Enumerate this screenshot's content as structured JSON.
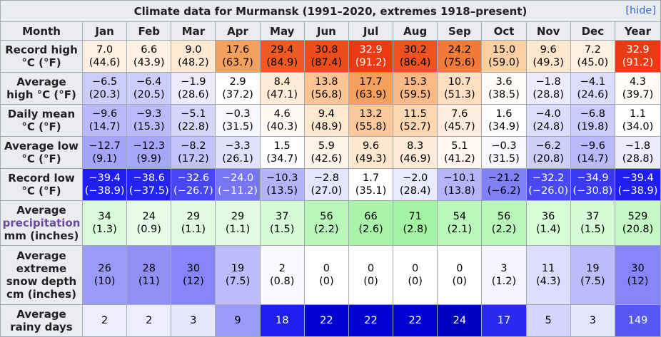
{
  "title": "Climate data for Murmansk (1991–2020, extremes 1918–present)",
  "hide_label": "[hide]",
  "header": [
    "Month",
    "Jan",
    "Feb",
    "Mar",
    "Apr",
    "May",
    "Jun",
    "Jul",
    "Aug",
    "Sep",
    "Oct",
    "Nov",
    "Dec",
    "Year"
  ],
  "rows": [
    {
      "label": "Record high °C (°F)",
      "label_lines": [
        "Record high",
        "°C (°F)"
      ],
      "cells": [
        {
          "t": "7.0",
          "s": "(44.6)",
          "bg": "#fff0e1",
          "fg": "#000000"
        },
        {
          "t": "6.6",
          "s": "(43.9)",
          "bg": "#fff1e3",
          "fg": "#000000"
        },
        {
          "t": "9.0",
          "s": "(48.2)",
          "bg": "#ffe9d3",
          "fg": "#000000"
        },
        {
          "t": "17.6",
          "s": "(63.7)",
          "bg": "#f5a05c",
          "fg": "#000000"
        },
        {
          "t": "29.4",
          "s": "(84.9)",
          "bg": "#f05a22",
          "fg": "#000000"
        },
        {
          "t": "30.8",
          "s": "(87.4)",
          "bg": "#ee4c1b",
          "fg": "#000000"
        },
        {
          "t": "32.9",
          "s": "(91.2)",
          "bg": "#ec3a12",
          "fg": "#ffffff"
        },
        {
          "t": "30.2",
          "s": "(86.4)",
          "bg": "#ef521e",
          "fg": "#000000"
        },
        {
          "t": "24.2",
          "s": "(75.6)",
          "bg": "#f27a38",
          "fg": "#000000"
        },
        {
          "t": "15.0",
          "s": "(59.0)",
          "bg": "#fdd0a4",
          "fg": "#000000"
        },
        {
          "t": "9.6",
          "s": "(49.3)",
          "bg": "#ffe7ce",
          "fg": "#000000"
        },
        {
          "t": "7.2",
          "s": "(45.0)",
          "bg": "#fff0e0",
          "fg": "#000000"
        },
        {
          "t": "32.9",
          "s": "(91.2)",
          "bg": "#ec3a12",
          "fg": "#ffffff"
        }
      ]
    },
    {
      "label": "Average high °C (°F)",
      "label_lines": [
        "Average",
        "high °C (°F)"
      ],
      "cells": [
        {
          "t": "−6.5",
          "s": "(20.3)",
          "bg": "#cdcdfc",
          "fg": "#000000"
        },
        {
          "t": "−6.4",
          "s": "(20.5)",
          "bg": "#cdcdfc",
          "fg": "#000000"
        },
        {
          "t": "−1.9",
          "s": "(28.6)",
          "bg": "#ececfe",
          "fg": "#000000"
        },
        {
          "t": "2.9",
          "s": "(37.2)",
          "bg": "#fffdfb",
          "fg": "#000000"
        },
        {
          "t": "8.4",
          "s": "(47.1)",
          "bg": "#ffebd6",
          "fg": "#000000"
        },
        {
          "t": "13.8",
          "s": "(56.8)",
          "bg": "#fdc596",
          "fg": "#000000"
        },
        {
          "t": "17.7",
          "s": "(63.9)",
          "bg": "#f5a05c",
          "fg": "#000000"
        },
        {
          "t": "15.3",
          "s": "(59.5)",
          "bg": "#fbba85",
          "fg": "#000000"
        },
        {
          "t": "10.7",
          "s": "(51.3)",
          "bg": "#ffdfbf",
          "fg": "#000000"
        },
        {
          "t": "3.6",
          "s": "(38.5)",
          "bg": "#fffbf8",
          "fg": "#000000"
        },
        {
          "t": "−1.8",
          "s": "(28.8)",
          "bg": "#ececfe",
          "fg": "#000000"
        },
        {
          "t": "−4.1",
          "s": "(24.6)",
          "bg": "#dcdcfd",
          "fg": "#000000"
        },
        {
          "t": "4.3",
          "s": "(39.7)",
          "bg": "#fffaf5",
          "fg": "#000000"
        }
      ]
    },
    {
      "label": "Daily mean °C (°F)",
      "label_lines": [
        "Daily mean",
        "°C (°F)"
      ],
      "cells": [
        {
          "t": "−9.6",
          "s": "(14.7)",
          "bg": "#b9b9fb",
          "fg": "#000000"
        },
        {
          "t": "−9.3",
          "s": "(15.3)",
          "bg": "#bbbbfb",
          "fg": "#000000"
        },
        {
          "t": "−5.1",
          "s": "(22.8)",
          "bg": "#d6d6fc",
          "fg": "#000000"
        },
        {
          "t": "−0.3",
          "s": "(31.5)",
          "bg": "#f7f7ff",
          "fg": "#000000"
        },
        {
          "t": "4.6",
          "s": "(40.3)",
          "bg": "#fff9f3",
          "fg": "#000000"
        },
        {
          "t": "9.4",
          "s": "(48.9)",
          "bg": "#ffe8d0",
          "fg": "#000000"
        },
        {
          "t": "13.2",
          "s": "(55.8)",
          "bg": "#fdc99b",
          "fg": "#000000"
        },
        {
          "t": "11.5",
          "s": "(52.7)",
          "bg": "#fed8b3",
          "fg": "#000000"
        },
        {
          "t": "7.6",
          "s": "(45.7)",
          "bg": "#ffeedd",
          "fg": "#000000"
        },
        {
          "t": "1.6",
          "s": "(34.9)",
          "bg": "#fffefd",
          "fg": "#000000"
        },
        {
          "t": "−4.0",
          "s": "(24.8)",
          "bg": "#dddcfd",
          "fg": "#000000"
        },
        {
          "t": "−6.8",
          "s": "(19.8)",
          "bg": "#cbcbfc",
          "fg": "#000000"
        },
        {
          "t": "1.1",
          "s": "(34.0)",
          "bg": "#ffffff",
          "fg": "#000000"
        }
      ]
    },
    {
      "label": "Average low °C (°F)",
      "label_lines": [
        "Average low",
        "°C (°F)"
      ],
      "cells": [
        {
          "t": "−12.7",
          "s": "(9.1)",
          "bg": "#a4a4fa",
          "fg": "#000000"
        },
        {
          "t": "−12.3",
          "s": "(9.9)",
          "bg": "#a7a7fa",
          "fg": "#000000"
        },
        {
          "t": "−8.2",
          "s": "(17.2)",
          "bg": "#c3c3fb",
          "fg": "#000000"
        },
        {
          "t": "−3.3",
          "s": "(26.1)",
          "bg": "#e1e1fd",
          "fg": "#000000"
        },
        {
          "t": "1.5",
          "s": "(34.7)",
          "bg": "#fffefe",
          "fg": "#000000"
        },
        {
          "t": "5.9",
          "s": "(42.6)",
          "bg": "#fff4ea",
          "fg": "#000000"
        },
        {
          "t": "9.6",
          "s": "(49.3)",
          "bg": "#ffe7ce",
          "fg": "#000000"
        },
        {
          "t": "8.3",
          "s": "(46.9)",
          "bg": "#ffebd7",
          "fg": "#000000"
        },
        {
          "t": "5.1",
          "s": "(41.2)",
          "bg": "#fff7f0",
          "fg": "#000000"
        },
        {
          "t": "−0.3",
          "s": "(31.5)",
          "bg": "#f7f7ff",
          "fg": "#000000"
        },
        {
          "t": "−6.2",
          "s": "(20.8)",
          "bg": "#cfcffc",
          "fg": "#000000"
        },
        {
          "t": "−9.6",
          "s": "(14.7)",
          "bg": "#b9b9fb",
          "fg": "#000000"
        },
        {
          "t": "−1.8",
          "s": "(28.8)",
          "bg": "#ececfe",
          "fg": "#000000"
        }
      ]
    },
    {
      "label": "Record low °C (°F)",
      "label_lines": [
        "Record low",
        "°C (°F)"
      ],
      "cells": [
        {
          "t": "−39.4",
          "s": "(−38.9)",
          "bg": "#1e1ef0",
          "fg": "#ffffff"
        },
        {
          "t": "−38.6",
          "s": "(−37.5)",
          "bg": "#2424f0",
          "fg": "#ffffff"
        },
        {
          "t": "−32.6",
          "s": "(−26.7)",
          "bg": "#4646f4",
          "fg": "#ffffff"
        },
        {
          "t": "−24.0",
          "s": "(−11.2)",
          "bg": "#7575f6",
          "fg": "#ffffff"
        },
        {
          "t": "−10.3",
          "s": "(13.5)",
          "bg": "#b4b4fa",
          "fg": "#000000"
        },
        {
          "t": "−2.8",
          "s": "(27.0)",
          "bg": "#e5e5fd",
          "fg": "#000000"
        },
        {
          "t": "1.7",
          "s": "(35.1)",
          "bg": "#ffffff",
          "fg": "#000000"
        },
        {
          "t": "−2.0",
          "s": "(28.4)",
          "bg": "#eaeafe",
          "fg": "#000000"
        },
        {
          "t": "−10.1",
          "s": "(13.8)",
          "bg": "#b5b5fa",
          "fg": "#000000"
        },
        {
          "t": "−21.2",
          "s": "(−6.2)",
          "bg": "#8080f7",
          "fg": "#000000"
        },
        {
          "t": "−32.2",
          "s": "(−26.0)",
          "bg": "#4848f4",
          "fg": "#ffffff"
        },
        {
          "t": "−34.9",
          "s": "(−30.8)",
          "bg": "#3939f2",
          "fg": "#ffffff"
        },
        {
          "t": "−39.4",
          "s": "(−38.9)",
          "bg": "#1e1ef0",
          "fg": "#ffffff"
        }
      ]
    },
    {
      "label": "Average precipitation mm (inches)",
      "label_lines": [
        "Average",
        "precipitation",
        "mm (inches)"
      ],
      "cells": [
        {
          "t": "34",
          "s": "(1.3)",
          "bg": "#d9fbd9",
          "fg": "#000000"
        },
        {
          "t": "24",
          "s": "(0.9)",
          "bg": "#e6fce6",
          "fg": "#000000"
        },
        {
          "t": "29",
          "s": "(1.1)",
          "bg": "#e0fbe0",
          "fg": "#000000"
        },
        {
          "t": "29",
          "s": "(1.1)",
          "bg": "#e0fbe0",
          "fg": "#000000"
        },
        {
          "t": "37",
          "s": "(1.5)",
          "bg": "#d5fad5",
          "fg": "#000000"
        },
        {
          "t": "56",
          "s": "(2.2)",
          "bg": "#b9f6b9",
          "fg": "#000000"
        },
        {
          "t": "66",
          "s": "(2.6)",
          "bg": "#aaf4aa",
          "fg": "#000000"
        },
        {
          "t": "71",
          "s": "(2.8)",
          "bg": "#a3f3a3",
          "fg": "#000000"
        },
        {
          "t": "54",
          "s": "(2.1)",
          "bg": "#bcf7bc",
          "fg": "#000000"
        },
        {
          "t": "56",
          "s": "(2.2)",
          "bg": "#b9f6b9",
          "fg": "#000000"
        },
        {
          "t": "36",
          "s": "(1.4)",
          "bg": "#d7fad7",
          "fg": "#000000"
        },
        {
          "t": "37",
          "s": "(1.5)",
          "bg": "#d5fad5",
          "fg": "#000000"
        },
        {
          "t": "529",
          "s": "(20.8)",
          "bg": "#c4f8c4",
          "fg": "#000000"
        }
      ]
    },
    {
      "label": "Average extreme snow depth cm (inches)",
      "label_lines": [
        "Average",
        "extreme",
        "snow depth",
        "cm (inches)"
      ],
      "cells": [
        {
          "t": "26",
          "s": "(10)",
          "bg": "#9a9af8",
          "fg": "#000000"
        },
        {
          "t": "28",
          "s": "(11)",
          "bg": "#9090f7",
          "fg": "#000000"
        },
        {
          "t": "30",
          "s": "(12)",
          "bg": "#8585f7",
          "fg": "#000000"
        },
        {
          "t": "19",
          "s": "(7.5)",
          "bg": "#bcbcfa",
          "fg": "#000000"
        },
        {
          "t": "2",
          "s": "(0.8)",
          "bg": "#f9f9ff",
          "fg": "#000000"
        },
        {
          "t": "0",
          "s": "(0)",
          "bg": "#ffffff",
          "fg": "#000000"
        },
        {
          "t": "0",
          "s": "(0)",
          "bg": "#ffffff",
          "fg": "#000000"
        },
        {
          "t": "0",
          "s": "(0)",
          "bg": "#ffffff",
          "fg": "#000000"
        },
        {
          "t": "0",
          "s": "(0)",
          "bg": "#ffffff",
          "fg": "#000000"
        },
        {
          "t": "3",
          "s": "(1.2)",
          "bg": "#f5f5ff",
          "fg": "#000000"
        },
        {
          "t": "11",
          "s": "(4.3)",
          "bg": "#dcdcfd",
          "fg": "#000000"
        },
        {
          "t": "19",
          "s": "(7.5)",
          "bg": "#bcbcfa",
          "fg": "#000000"
        },
        {
          "t": "30",
          "s": "(12)",
          "bg": "#8585f7",
          "fg": "#000000"
        }
      ]
    },
    {
      "label": "Average rainy days",
      "label_lines": [
        "Average",
        "rainy days"
      ],
      "cells": [
        {
          "t": "2",
          "s": "",
          "bg": "#ededfe",
          "fg": "#000000"
        },
        {
          "t": "2",
          "s": "",
          "bg": "#ededfe",
          "fg": "#000000"
        },
        {
          "t": "3",
          "s": "",
          "bg": "#e6e6fd",
          "fg": "#000000"
        },
        {
          "t": "9",
          "s": "",
          "bg": "#9b9bf9",
          "fg": "#000000"
        },
        {
          "t": "18",
          "s": "",
          "bg": "#1e1ef0",
          "fg": "#ffffff"
        },
        {
          "t": "22",
          "s": "",
          "bg": "#0000d2",
          "fg": "#ffffff"
        },
        {
          "t": "22",
          "s": "",
          "bg": "#0000d2",
          "fg": "#ffffff"
        },
        {
          "t": "22",
          "s": "",
          "bg": "#0000d2",
          "fg": "#ffffff"
        },
        {
          "t": "24",
          "s": "",
          "bg": "#0000c0",
          "fg": "#ffffff"
        },
        {
          "t": "17",
          "s": "",
          "bg": "#2a2af0",
          "fg": "#ffffff"
        },
        {
          "t": "5",
          "s": "",
          "bg": "#d4d4fc",
          "fg": "#000000"
        },
        {
          "t": "3",
          "s": "",
          "bg": "#e6e6fd",
          "fg": "#000000"
        },
        {
          "t": "149",
          "s": "",
          "bg": "#5757f4",
          "fg": "#ffffff"
        }
      ]
    }
  ]
}
